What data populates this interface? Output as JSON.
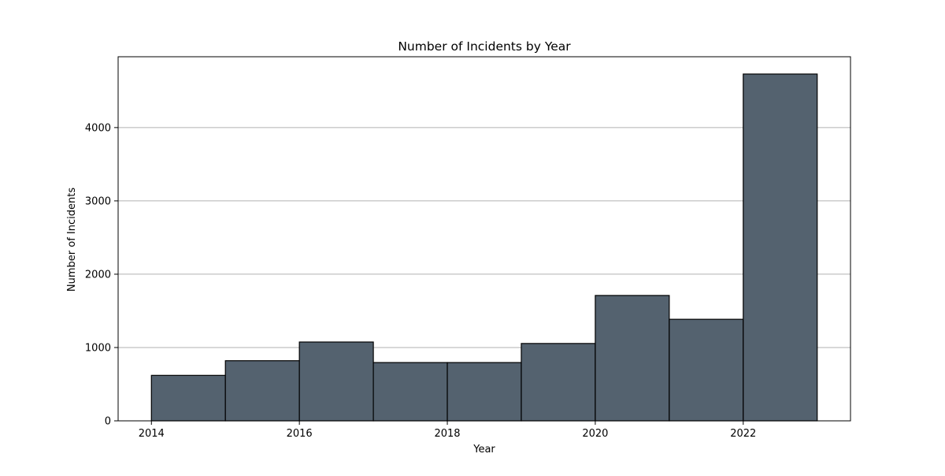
{
  "chart_data": {
    "type": "bar",
    "title": "Number of Incidents by Year",
    "xlabel": "Year",
    "ylabel": "Number of Incidents",
    "bin_edges": [
      2014,
      2015,
      2016,
      2017,
      2018,
      2019,
      2020,
      2021,
      2022,
      2023
    ],
    "values": [
      620,
      820,
      1075,
      795,
      795,
      1055,
      1710,
      1385,
      4730
    ],
    "xlim": [
      2013.55,
      2023.45
    ],
    "ylim": [
      0,
      4966
    ],
    "x_ticks": [
      2014,
      2016,
      2018,
      2020,
      2022
    ],
    "y_ticks": [
      0,
      1000,
      2000,
      3000,
      4000
    ],
    "x_tick_labels": [
      "2014",
      "2016",
      "2018",
      "2020",
      "2022"
    ],
    "y_tick_labels": [
      "0",
      "1000",
      "2000",
      "3000",
      "4000"
    ],
    "grid": "y",
    "legend": "none",
    "colors": {
      "bar_fill": "#54626f",
      "bar_edge": "#000000",
      "grid": "#b0b0b0",
      "axes": "#000000"
    }
  }
}
